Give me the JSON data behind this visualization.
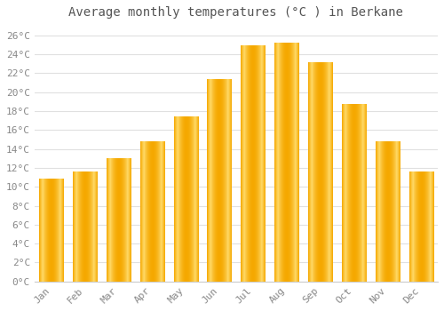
{
  "title": "Average monthly temperatures (°C ) in Berkane",
  "months": [
    "Jan",
    "Feb",
    "Mar",
    "Apr",
    "May",
    "Jun",
    "Jul",
    "Aug",
    "Sep",
    "Oct",
    "Nov",
    "Dec"
  ],
  "values": [
    10.8,
    11.6,
    13.0,
    14.8,
    17.4,
    21.3,
    24.9,
    25.2,
    23.1,
    18.7,
    14.8,
    11.6
  ],
  "bar_color_center": "#FFD966",
  "bar_color_edge": "#F5A800",
  "background_color": "#FFFFFF",
  "grid_color": "#E0E0E0",
  "text_color": "#888888",
  "title_color": "#555555",
  "ylim": [
    0,
    27
  ],
  "yticks": [
    0,
    2,
    4,
    6,
    8,
    10,
    12,
    14,
    16,
    18,
    20,
    22,
    24,
    26
  ],
  "title_fontsize": 10,
  "tick_fontsize": 8,
  "bar_width": 0.72
}
